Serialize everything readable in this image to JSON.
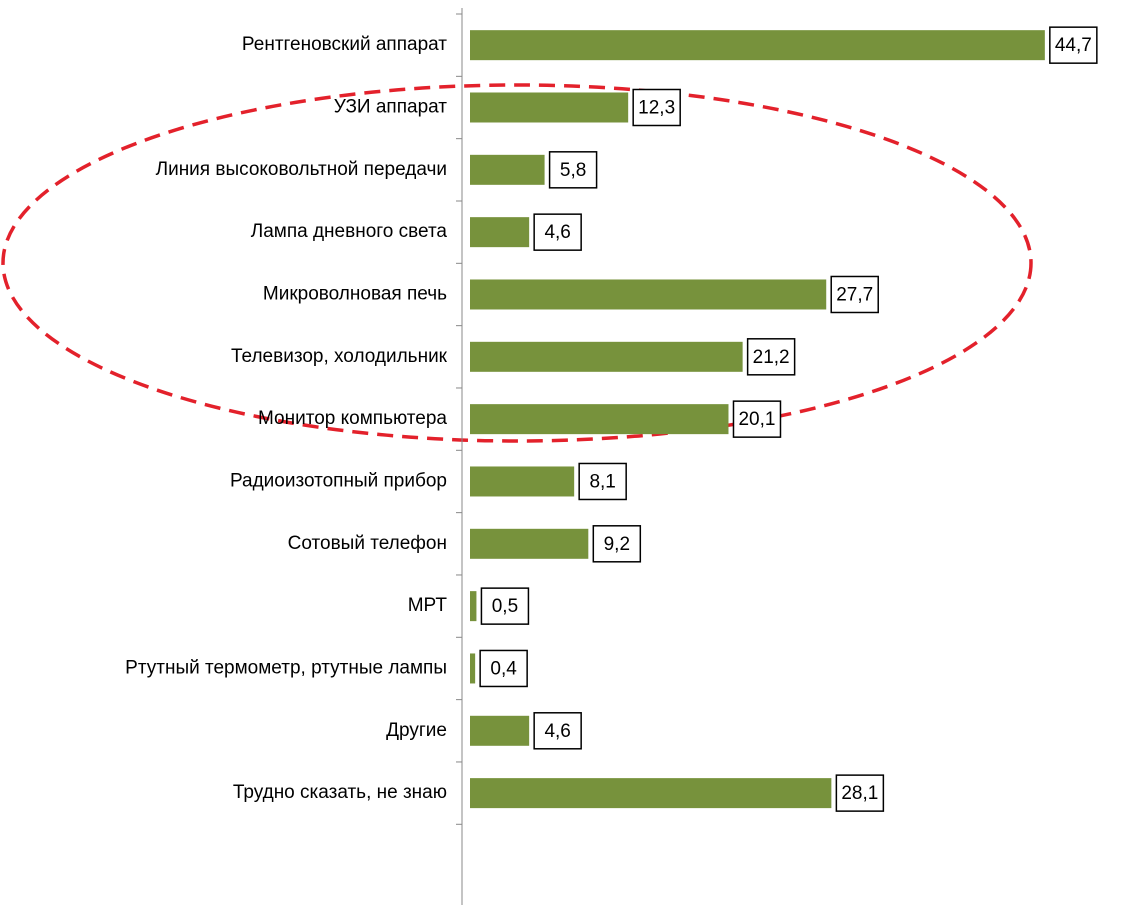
{
  "chart_data": {
    "type": "bar",
    "orientation": "horizontal",
    "categories": [
      "Рентгеновский аппарат",
      "УЗИ аппарат",
      "Линия высоковольтной передачи",
      "Лампа дневного света",
      "Микроволновая печь",
      "Телевизор, холодильник",
      "Монитор компьютера",
      "Радиоизотопный прибор",
      "Сотовый телефон",
      "МРТ",
      "Ртутный термометр, ртутные лампы",
      "Другие",
      "Трудно сказать, не знаю"
    ],
    "values": [
      44.7,
      12.3,
      5.8,
      4.6,
      27.7,
      21.2,
      20.1,
      8.1,
      9.2,
      0.5,
      0.4,
      4.6,
      28.1
    ],
    "value_labels": [
      "44,7",
      "12,3",
      "5,8",
      "4,6",
      "27,7",
      "21,2",
      "20,1",
      "8,1",
      "9,2",
      "0,5",
      "0,4",
      "4,6",
      "28,1"
    ],
    "color": "#77923c",
    "xlim": [
      0,
      50
    ]
  }
}
